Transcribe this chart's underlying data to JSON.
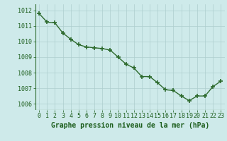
{
  "x": [
    0,
    1,
    2,
    3,
    4,
    5,
    6,
    7,
    8,
    9,
    10,
    11,
    12,
    13,
    14,
    15,
    16,
    17,
    18,
    19,
    20,
    21,
    22,
    23
  ],
  "y": [
    1011.8,
    1011.25,
    1011.2,
    1010.55,
    1010.15,
    1009.8,
    1009.65,
    1009.6,
    1009.55,
    1009.45,
    1009.0,
    1008.55,
    1008.3,
    1007.75,
    1007.75,
    1007.35,
    1006.9,
    1006.85,
    1006.5,
    1006.2,
    1006.5,
    1006.5,
    1007.1,
    1007.45
  ],
  "line_color": "#2d6a2d",
  "marker": "+",
  "marker_size": 4,
  "line_width": 1.0,
  "bg_color": "#ceeaea",
  "grid_color": "#aecece",
  "xlabel": "Graphe pression niveau de la mer (hPa)",
  "xlabel_color": "#1a5c1a",
  "xlabel_fontsize": 7.0,
  "yticks": [
    1006,
    1007,
    1008,
    1009,
    1010,
    1011,
    1012
  ],
  "xticks": [
    0,
    1,
    2,
    3,
    4,
    5,
    6,
    7,
    8,
    9,
    10,
    11,
    12,
    13,
    14,
    15,
    16,
    17,
    18,
    19,
    20,
    21,
    22,
    23
  ],
  "ylim": [
    1005.6,
    1012.4
  ],
  "xlim": [
    -0.5,
    23.5
  ],
  "tick_fontsize": 6.0,
  "tick_color": "#1a5c1a",
  "bottom_bar_color": "#2d7a2d",
  "bottom_bar_height": 0.12
}
